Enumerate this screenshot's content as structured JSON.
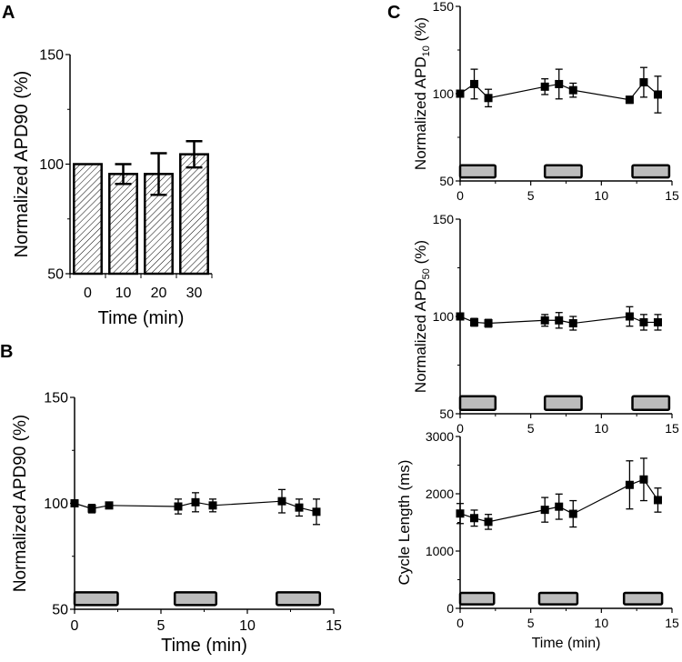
{
  "panel_labels": [
    "A",
    "B",
    "C"
  ],
  "colors": {
    "axis": "#000000",
    "marker": "#000000",
    "stim_fill": "#bcbcbc",
    "bar_hatch": "#000000"
  },
  "chart_data": [
    {
      "id": "A",
      "type": "bar",
      "title": "",
      "xlabel": "Time (min)",
      "ylabel": "Normalized APD90 (%)",
      "categories": [
        "0",
        "10",
        "20",
        "30"
      ],
      "values": [
        100,
        95.5,
        95.5,
        104.5
      ],
      "errors": [
        0,
        4.5,
        9.5,
        6
      ],
      "ylim": [
        50,
        150
      ],
      "yticks": [
        50,
        100,
        150
      ],
      "yminor": [
        75,
        125
      ],
      "fill": "hatched"
    },
    {
      "id": "B",
      "type": "line",
      "xlabel": "Time (min)",
      "ylabel": "Normalized APD90 (%)",
      "x": [
        0,
        1,
        2,
        6,
        7,
        8,
        12,
        13,
        14
      ],
      "y": [
        100,
        97.5,
        99,
        98.5,
        100.5,
        99,
        101,
        98,
        96
      ],
      "errors": [
        1,
        2,
        1.5,
        3.5,
        4.5,
        3,
        5.5,
        4,
        6
      ],
      "xlim": [
        0,
        15
      ],
      "xticks": [
        0,
        5,
        10,
        15
      ],
      "ylim": [
        50,
        150
      ],
      "yticks": [
        50,
        100,
        150
      ],
      "yminor": [
        75,
        125
      ],
      "stimulus_periods": [
        [
          0,
          2.5
        ],
        [
          5.8,
          8.2
        ],
        [
          11.7,
          14.2
        ]
      ],
      "stimulus_range": [
        52,
        58
      ]
    },
    {
      "id": "C-APD10",
      "type": "line",
      "xlabel": "",
      "ylabel": {
        "main": "Normalized APD",
        "sub": "10",
        "unit": " (%)"
      },
      "x": [
        0,
        1,
        2,
        6,
        7,
        8,
        12,
        13,
        14
      ],
      "y": [
        100,
        105.5,
        97.5,
        104,
        105.5,
        102,
        96.5,
        106.5,
        99.5
      ],
      "errors": [
        1,
        8.5,
        5,
        4.5,
        8.5,
        4,
        2,
        8.5,
        10.5
      ],
      "xlim": [
        0,
        15
      ],
      "xticks": [
        0,
        5,
        10,
        15
      ],
      "ylim": [
        50,
        150
      ],
      "yticks": [
        50,
        100,
        150
      ],
      "yminor": [
        75,
        125
      ],
      "stimulus_periods": [
        [
          0,
          2.5
        ],
        [
          6,
          8.6
        ],
        [
          12.2,
          14.8
        ]
      ],
      "stimulus_range": [
        52,
        59
      ]
    },
    {
      "id": "C-APD50",
      "type": "line",
      "xlabel": "",
      "ylabel": {
        "main": "Normalized APD",
        "sub": "50",
        "unit": " (%)"
      },
      "x": [
        0,
        1,
        2,
        6,
        7,
        8,
        12,
        13,
        14
      ],
      "y": [
        100,
        97,
        96.5,
        98,
        98,
        96.5,
        100,
        97,
        97
      ],
      "errors": [
        1,
        2,
        2,
        3,
        4,
        3.5,
        5,
        4,
        4
      ],
      "xlim": [
        0,
        15
      ],
      "xticks": [
        0,
        5,
        10,
        15
      ],
      "ylim": [
        50,
        150
      ],
      "yticks": [
        50,
        100,
        150
      ],
      "yminor": [
        75,
        125
      ],
      "stimulus_periods": [
        [
          0,
          2.5
        ],
        [
          6,
          8.6
        ],
        [
          12.2,
          14.8
        ]
      ],
      "stimulus_range": [
        52,
        59
      ]
    },
    {
      "id": "C-CL",
      "type": "line",
      "xlabel": "Time (min)",
      "ylabel": "Cycle Length (ms)",
      "x": [
        0,
        1,
        2,
        6,
        7,
        8,
        12,
        13,
        14
      ],
      "y": [
        1655,
        1575,
        1510,
        1720,
        1775,
        1650,
        2155,
        2250,
        1890
      ],
      "errors": [
        175,
        140,
        130,
        215,
        220,
        230,
        420,
        370,
        210
      ],
      "xlim": [
        0,
        15
      ],
      "xticks": [
        0,
        5,
        10,
        15
      ],
      "ylim": [
        0,
        3000
      ],
      "yticks": [
        0,
        1000,
        2000,
        3000
      ],
      "yminor": [
        500,
        1500,
        2500
      ],
      "stimulus_periods": [
        [
          0,
          2.4
        ],
        [
          5.6,
          8.3
        ],
        [
          11.6,
          14.3
        ]
      ],
      "stimulus_range": [
        70,
        270
      ]
    }
  ]
}
